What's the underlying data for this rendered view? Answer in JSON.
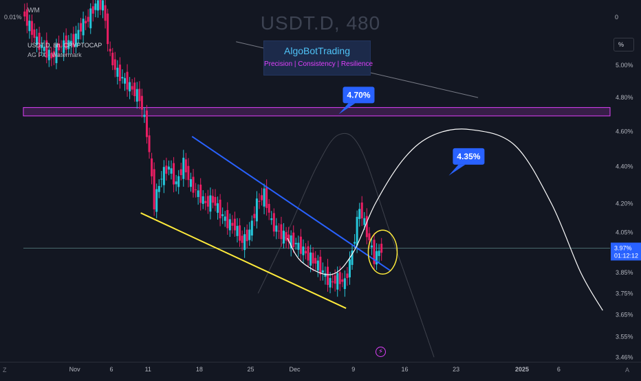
{
  "header": {
    "watermark": "USDT.D, 480",
    "wm_tag": "WM",
    "top_left_value": "0.01%",
    "top_right_value": "0",
    "symbol_line": "USDT.D, 8h, CRYPTOCAP",
    "indicator_line": "AG FX - Watermark",
    "percent_button": "%"
  },
  "brand": {
    "title": "AlgoBotTrading",
    "subtitle": "Precision  | Consistency | Resilience"
  },
  "footer": {
    "left_letter": "Z",
    "right_letter": "A"
  },
  "icons": {
    "bolt": "lightning-icon"
  },
  "colors": {
    "background": "#131722",
    "bull": "#26c6da",
    "bear": "#e91e63",
    "resistance_band": "#e040fb",
    "trendline": "#2962ff",
    "support_line": "#ffeb3b",
    "projection": "#ffffff",
    "current_price_box": "#2962ff"
  },
  "chart_data": {
    "type": "candlestick",
    "symbol": "USDT.D",
    "interval": "8h",
    "source": "CRYPTOCAP",
    "y_scale": "log",
    "ylim": [
      3.44,
      5.4
    ],
    "y_ticks": [
      "5.00%",
      "4.80%",
      "4.60%",
      "4.40%",
      "4.20%",
      "4.05%",
      "3.85%",
      "3.75%",
      "3.65%",
      "3.55%",
      "3.46%"
    ],
    "x_tick_labels": [
      "Nov",
      "6",
      "11",
      "18",
      "25",
      "Dec",
      "9",
      "16",
      "23",
      "2025",
      "6"
    ],
    "xlim": [
      "2024-10-25",
      "2025-01-13"
    ],
    "x_ticks": [
      {
        "label": "Nov",
        "date": "2024-11-01"
      },
      {
        "label": "6",
        "date": "2024-11-06"
      },
      {
        "label": "11",
        "date": "2024-11-11"
      },
      {
        "label": "18",
        "date": "2024-11-18"
      },
      {
        "label": "25",
        "date": "2024-11-25"
      },
      {
        "label": "Dec",
        "date": "2024-12-01"
      },
      {
        "label": "9",
        "date": "2024-12-09"
      },
      {
        "label": "16",
        "date": "2024-12-16"
      },
      {
        "label": "23",
        "date": "2024-12-23"
      },
      {
        "label": "2025",
        "date": "2025-01-01"
      },
      {
        "label": "6",
        "date": "2025-01-06"
      }
    ],
    "price_path": [
      [
        "2024-10-25",
        5.35
      ],
      [
        "2024-10-26",
        5.25
      ],
      [
        "2024-10-27",
        5.15
      ],
      [
        "2024-10-28",
        5.1
      ],
      [
        "2024-10-29",
        5.05
      ],
      [
        "2024-10-30",
        5.12
      ],
      [
        "2024-11-01",
        5.15
      ],
      [
        "2024-11-02",
        5.25
      ],
      [
        "2024-11-03",
        5.3
      ],
      [
        "2024-11-04",
        5.4
      ],
      [
        "2024-11-05",
        5.4
      ],
      [
        "2024-11-06",
        5.05
      ],
      [
        "2024-11-07",
        4.95
      ],
      [
        "2024-11-08",
        4.9
      ],
      [
        "2024-11-09",
        4.85
      ],
      [
        "2024-11-10",
        4.8
      ],
      [
        "2024-11-11",
        4.6
      ],
      [
        "2024-11-12",
        4.2
      ],
      [
        "2024-11-13",
        4.35
      ],
      [
        "2024-11-14",
        4.4
      ],
      [
        "2024-11-15",
        4.3
      ],
      [
        "2024-11-16",
        4.42
      ],
      [
        "2024-11-17",
        4.3
      ],
      [
        "2024-11-18",
        4.25
      ],
      [
        "2024-11-19",
        4.2
      ],
      [
        "2024-11-20",
        4.22
      ],
      [
        "2024-11-21",
        4.15
      ],
      [
        "2024-11-22",
        4.1
      ],
      [
        "2024-11-23",
        4.08
      ],
      [
        "2024-11-24",
        4.0
      ],
      [
        "2024-11-25",
        4.05
      ],
      [
        "2024-11-26",
        4.2
      ],
      [
        "2024-11-27",
        4.25
      ],
      [
        "2024-11-28",
        4.1
      ],
      [
        "2024-11-29",
        4.05
      ],
      [
        "2024-11-30",
        4.02
      ],
      [
        "2024-12-01",
        4.0
      ],
      [
        "2024-12-02",
        3.97
      ],
      [
        "2024-12-03",
        3.93
      ],
      [
        "2024-12-04",
        3.9
      ],
      [
        "2024-12-05",
        3.85
      ],
      [
        "2024-12-06",
        3.8
      ],
      [
        "2024-12-07",
        3.82
      ],
      [
        "2024-12-08",
        3.8
      ],
      [
        "2024-12-09",
        3.95
      ],
      [
        "2024-12-10",
        4.18
      ],
      [
        "2024-12-11",
        4.05
      ],
      [
        "2024-12-12",
        3.92
      ],
      [
        "2024-12-13",
        3.97
      ]
    ],
    "last_price": "3.97%",
    "countdown": "01:12:12",
    "current_price": 3.97,
    "resistance_band": [
      4.69,
      4.74
    ],
    "callouts": [
      {
        "text": "4.70%",
        "date": "2024-12-07",
        "value": 4.7
      },
      {
        "text": "4.35%",
        "date": "2024-12-22",
        "value": 4.35
      }
    ],
    "descending_trendline": {
      "start": [
        "2024-11-17",
        4.57
      ],
      "end": [
        "2024-12-14",
        3.86
      ]
    },
    "support_line": {
      "start": [
        "2024-11-10",
        4.15
      ],
      "end": [
        "2024-12-08",
        3.68
      ]
    },
    "upper_descending_line": {
      "start": [
        "2024-11-23",
        5.15
      ],
      "end": [
        "2024-12-26",
        4.8
      ]
    },
    "projection_path": [
      [
        "2024-11-30",
        4.02
      ],
      [
        "2024-12-02",
        3.9
      ],
      [
        "2024-12-06",
        3.84
      ],
      [
        "2024-12-09",
        3.95
      ],
      [
        "2024-12-12",
        4.2
      ],
      [
        "2024-12-16",
        4.45
      ],
      [
        "2024-12-20",
        4.58
      ],
      [
        "2024-12-25",
        4.61
      ],
      [
        "2024-12-31",
        4.52
      ],
      [
        "2025-01-05",
        4.2
      ],
      [
        "2025-01-09",
        3.85
      ],
      [
        "2025-01-12",
        3.67
      ]
    ],
    "ghost_arc_path": [
      [
        "2024-11-26",
        3.75
      ],
      [
        "2024-11-30",
        4.05
      ],
      [
        "2024-12-04",
        4.4
      ],
      [
        "2024-12-07",
        4.58
      ],
      [
        "2024-12-10",
        4.5
      ],
      [
        "2024-12-14",
        4.05
      ],
      [
        "2024-12-18",
        3.65
      ],
      [
        "2024-12-20",
        3.46
      ]
    ],
    "highlight_circle": {
      "date": "2024-12-13",
      "value": 3.95
    }
  }
}
